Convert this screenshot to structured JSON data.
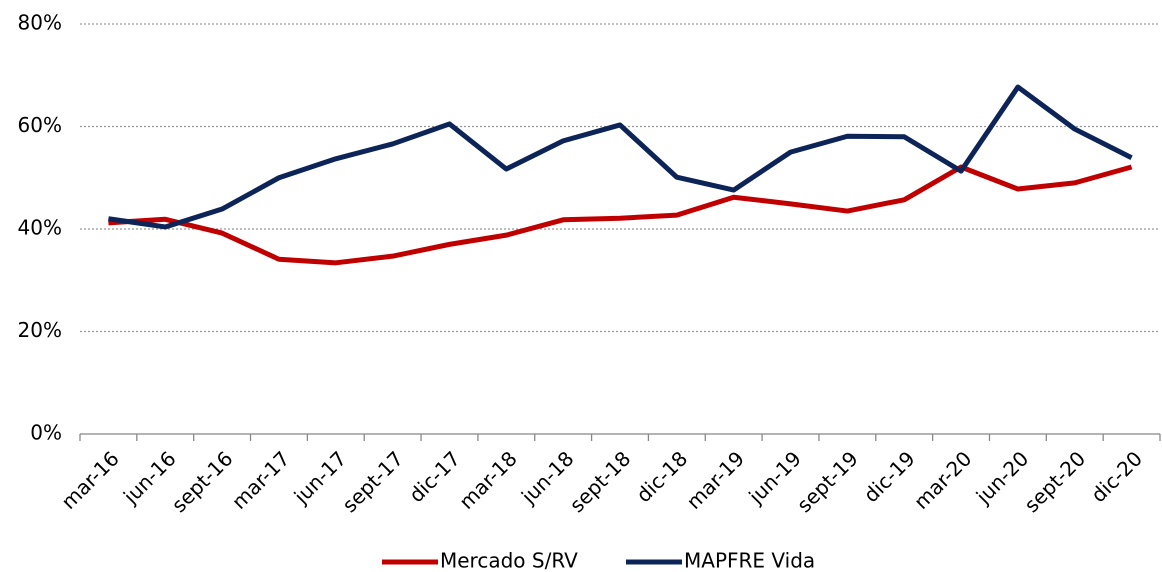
{
  "chart_data": {
    "type": "line",
    "categories": [
      "mar-16",
      "jun-16",
      "sept-16",
      "mar-17",
      "jun-17",
      "sept-17",
      "dic-17",
      "mar-18",
      "jun-18",
      "sept-18",
      "dic-18",
      "mar-19",
      "jun-19",
      "sept-19",
      "dic-19",
      "mar-20",
      "jun-20",
      "sept-20",
      "dic-20"
    ],
    "series": [
      {
        "name": "Mercado S/RV",
        "color": "#c00000",
        "values": [
          41.2,
          41.9,
          39.2,
          34.1,
          33.4,
          34.7,
          37,
          38.8,
          41.8,
          42.1,
          42.7,
          46.2,
          44.9,
          43.5,
          45.7,
          52.1,
          47.8,
          49,
          52.1
        ]
      },
      {
        "name": "MAPFRE Vida",
        "color": "#0c2457",
        "values": [
          42,
          40.4,
          43.9,
          50,
          53.7,
          56.6,
          60.5,
          51.7,
          57.2,
          60.3,
          50.1,
          47.6,
          55,
          58.1,
          58,
          51.3,
          67.7,
          59.5,
          53.9
        ]
      }
    ],
    "ylim": [
      0,
      80
    ],
    "yticks": [
      {
        "value": 0,
        "label": "0%"
      },
      {
        "value": 20,
        "label": "20%"
      },
      {
        "value": 40,
        "label": "40%"
      },
      {
        "value": 60,
        "label": "60%"
      },
      {
        "value": 80,
        "label": "80%"
      }
    ],
    "grid": true,
    "legend": "bottom"
  }
}
